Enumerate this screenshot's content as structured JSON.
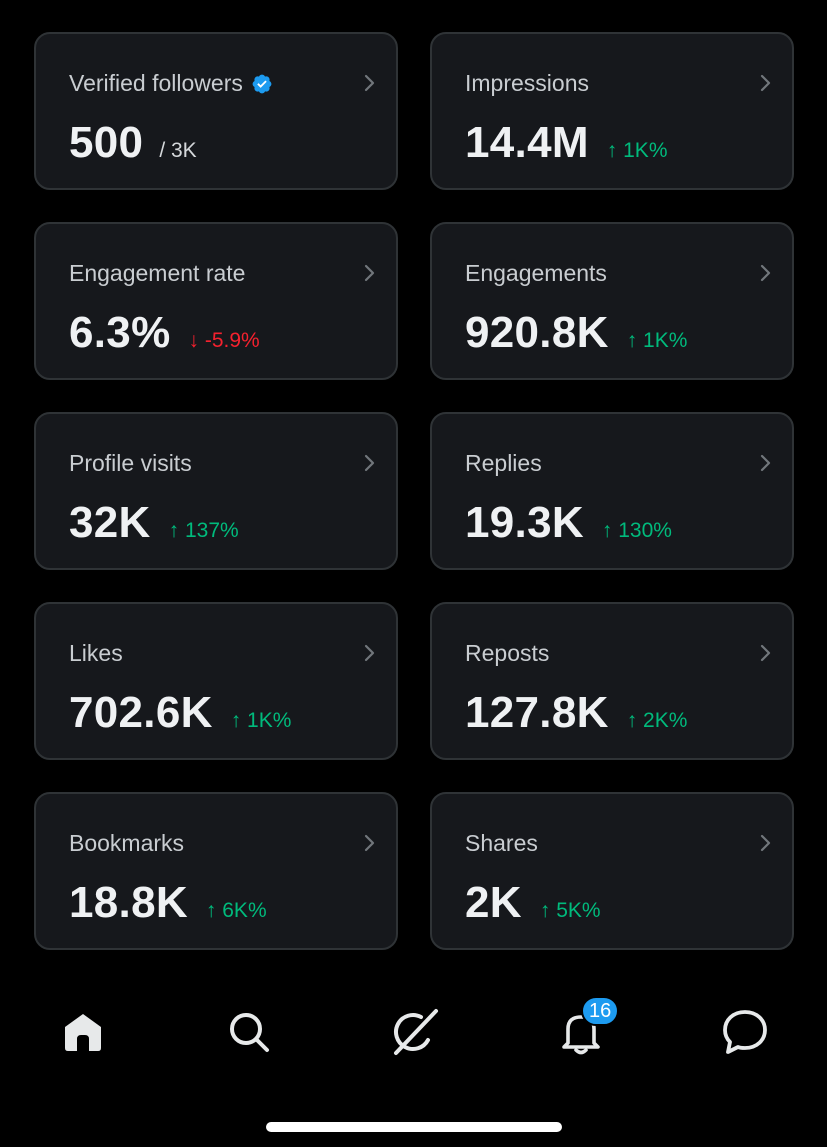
{
  "colors": {
    "background": "#000000",
    "card_background": "#16181c",
    "card_border": "#2f3336",
    "positive": "#00ba7c",
    "negative": "#f4212e",
    "verified": "#1d9bf0",
    "badge": "#1d9bf0"
  },
  "metrics": [
    {
      "title": "Verified followers",
      "value": "500",
      "sub": "/ 3K",
      "icon": "verified-badge-icon"
    },
    {
      "title": "Impressions",
      "value": "14.4M",
      "delta": "↑ 1K%",
      "direction": "up"
    },
    {
      "title": "Engagement rate",
      "value": "6.3%",
      "delta": "↓ -5.9%",
      "direction": "down"
    },
    {
      "title": "Engagements",
      "value": "920.8K",
      "delta": "↑ 1K%",
      "direction": "up"
    },
    {
      "title": "Profile visits",
      "value": "32K",
      "delta": "↑ 137%",
      "direction": "up"
    },
    {
      "title": "Replies",
      "value": "19.3K",
      "delta": "↑ 130%",
      "direction": "up"
    },
    {
      "title": "Likes",
      "value": "702.6K",
      "delta": "↑ 1K%",
      "direction": "up"
    },
    {
      "title": "Reposts",
      "value": "127.8K",
      "delta": "↑ 2K%",
      "direction": "up"
    },
    {
      "title": "Bookmarks",
      "value": "18.8K",
      "delta": "↑ 6K%",
      "direction": "up"
    },
    {
      "title": "Shares",
      "value": "2K",
      "delta": "↑ 5K%",
      "direction": "up"
    }
  ],
  "nav": {
    "items": [
      {
        "icon": "home-icon",
        "active": true
      },
      {
        "icon": "search-icon"
      },
      {
        "icon": "grok-icon"
      },
      {
        "icon": "bell-icon"
      },
      {
        "icon": "messages-icon"
      }
    ],
    "notification_badge": "16"
  }
}
